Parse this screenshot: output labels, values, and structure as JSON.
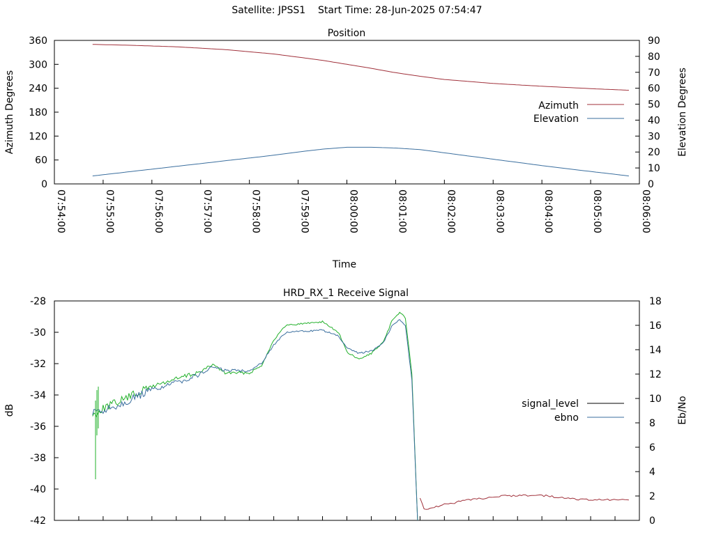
{
  "page": {
    "title": "Satellite: JPSS1    Start Time: 28-Jun-2025 07:54:47"
  },
  "chart_data": [
    {
      "type": "line",
      "title": "Position",
      "xlabel": "Time",
      "ylabel": "Azimuth Degrees",
      "y2label": "Elevation Degrees",
      "xlim": [
        "07:54:00",
        "08:06:00"
      ],
      "ylim": [
        0,
        360
      ],
      "y2lim": [
        0,
        90
      ],
      "x_ticks": [
        "07:54:00",
        "07:55:00",
        "07:56:00",
        "07:57:00",
        "07:58:00",
        "07:59:00",
        "08:00:00",
        "08:01:00",
        "08:02:00",
        "08:03:00",
        "08:04:00",
        "08:05:00",
        "08:06:00"
      ],
      "y_ticks": [
        "0",
        "60",
        "120",
        "180",
        "240",
        "300",
        "360"
      ],
      "y2_ticks": [
        "0",
        "10",
        "20",
        "30",
        "40",
        "50",
        "60",
        "70",
        "80",
        "90"
      ],
      "legend_position": "right",
      "grid": false,
      "series": [
        {
          "name": "Azimuth",
          "axis": "left",
          "color": "#a0303a",
          "x": [
            "07:54:47",
            "07:55:30",
            "07:56:30",
            "07:57:30",
            "07:58:30",
            "07:59:30",
            "08:00:00",
            "08:00:30",
            "08:01:00",
            "08:01:30",
            "08:02:00",
            "08:03:00",
            "08:04:00",
            "08:05:00",
            "08:05:47"
          ],
          "values": [
            350,
            348,
            344,
            337,
            326,
            310,
            300,
            290,
            279,
            270,
            262,
            252,
            245,
            239,
            235
          ]
        },
        {
          "name": "Elevation",
          "axis": "right",
          "color": "#3a6e9e",
          "x": [
            "07:54:47",
            "07:55:30",
            "07:56:30",
            "07:57:30",
            "07:58:30",
            "07:59:00",
            "07:59:30",
            "08:00:00",
            "08:00:30",
            "08:01:00",
            "08:01:30",
            "08:02:00",
            "08:03:00",
            "08:04:00",
            "08:05:00",
            "08:05:47"
          ],
          "values": [
            5,
            7.5,
            11,
            14.5,
            18,
            20,
            21.8,
            23,
            23,
            22.5,
            21.5,
            19.5,
            15.5,
            11.5,
            7.8,
            5
          ]
        }
      ]
    },
    {
      "type": "line",
      "title": "HRD_RX_1 Receive Signal",
      "ylabel": "dB",
      "y2label": "Eb/No",
      "ylim": [
        -42,
        -28
      ],
      "y2lim": [
        0,
        18
      ],
      "xlim": [
        "07:54:00",
        "08:06:00"
      ],
      "y_ticks": [
        "-42",
        "-40",
        "-38",
        "-36",
        "-34",
        "-32",
        "-30",
        "-28"
      ],
      "y2_ticks": [
        "0",
        "2",
        "4",
        "6",
        "8",
        "10",
        "12",
        "14",
        "16",
        "18"
      ],
      "legend_position": "right",
      "grid": false,
      "series": [
        {
          "name": "signal_level",
          "axis": "left",
          "color": "#000000",
          "tail_color": "#a0303a",
          "x": [
            "07:54:47",
            "07:55:00",
            "07:55:30",
            "07:56:00",
            "07:56:30",
            "07:57:00",
            "07:57:15",
            "07:57:30",
            "07:58:00",
            "07:58:15",
            "07:58:30",
            "07:58:45",
            "07:59:00",
            "07:59:30",
            "07:59:50",
            "08:00:00",
            "08:00:15",
            "08:00:30",
            "08:00:45",
            "08:00:55",
            "08:01:05",
            "08:01:12",
            "08:01:20",
            "08:01:25",
            "08:01:30",
            "08:01:35",
            "08:02:00",
            "08:02:30",
            "08:03:00",
            "08:03:30",
            "08:04:00",
            "08:04:30",
            "08:05:00",
            "08:05:47"
          ],
          "values": [
            -35.4,
            -35.2,
            -34.6,
            -33.9,
            -33.4,
            -32.9,
            -32.3,
            -32.5,
            -32.6,
            -32.0,
            -30.8,
            -30.0,
            -29.9,
            -29.8,
            -30.2,
            -31.1,
            -31.5,
            -31.2,
            -30.7,
            -29.7,
            -29.2,
            -29.6,
            -32.8,
            -38.5,
            -40.6,
            -41.3,
            -41.0,
            -40.7,
            -40.5,
            -40.4,
            -40.4,
            -40.6,
            -40.7,
            -40.7
          ]
        },
        {
          "name": "ebno",
          "axis": "right",
          "color": "#3a6e9e",
          "x": [
            "07:54:47",
            "07:55:00",
            "07:55:30",
            "07:56:00",
            "07:56:30",
            "07:57:00",
            "07:57:15",
            "07:57:30",
            "07:58:00",
            "07:58:15",
            "07:58:30",
            "07:58:45",
            "07:59:00",
            "07:59:30",
            "07:59:50",
            "08:00:00",
            "08:00:15",
            "08:00:30",
            "08:00:45",
            "08:00:55",
            "08:01:05",
            "08:01:12",
            "08:01:20",
            "08:01:27"
          ],
          "values": [
            8.8,
            9.0,
            9.8,
            10.7,
            11.3,
            12.0,
            12.6,
            12.3,
            12.3,
            12.9,
            14.4,
            15.4,
            15.5,
            15.6,
            15.1,
            14.1,
            13.7,
            13.9,
            14.6,
            15.9,
            16.5,
            16.0,
            11.5,
            0
          ]
        },
        {
          "name": "",
          "axis": "right",
          "color": "#22b02a",
          "x": [
            "07:54:47",
            "07:55:00",
            "07:55:30",
            "07:56:00",
            "07:56:30",
            "07:57:00",
            "07:57:15",
            "07:57:30",
            "07:58:00",
            "07:58:15",
            "07:58:30",
            "07:58:45",
            "07:59:00",
            "07:59:30",
            "07:59:50",
            "08:00:00",
            "08:00:15",
            "08:00:30",
            "08:00:45",
            "08:00:55",
            "08:01:05",
            "08:01:12",
            "08:01:20",
            "08:01:27"
          ],
          "values": [
            8.6,
            9.2,
            10.1,
            11.0,
            11.6,
            12.2,
            12.8,
            12.1,
            12.1,
            12.7,
            14.8,
            16.0,
            16.1,
            16.3,
            15.4,
            13.8,
            13.2,
            13.7,
            14.6,
            16.3,
            17.1,
            16.6,
            12.0,
            0
          ]
        }
      ]
    }
  ]
}
